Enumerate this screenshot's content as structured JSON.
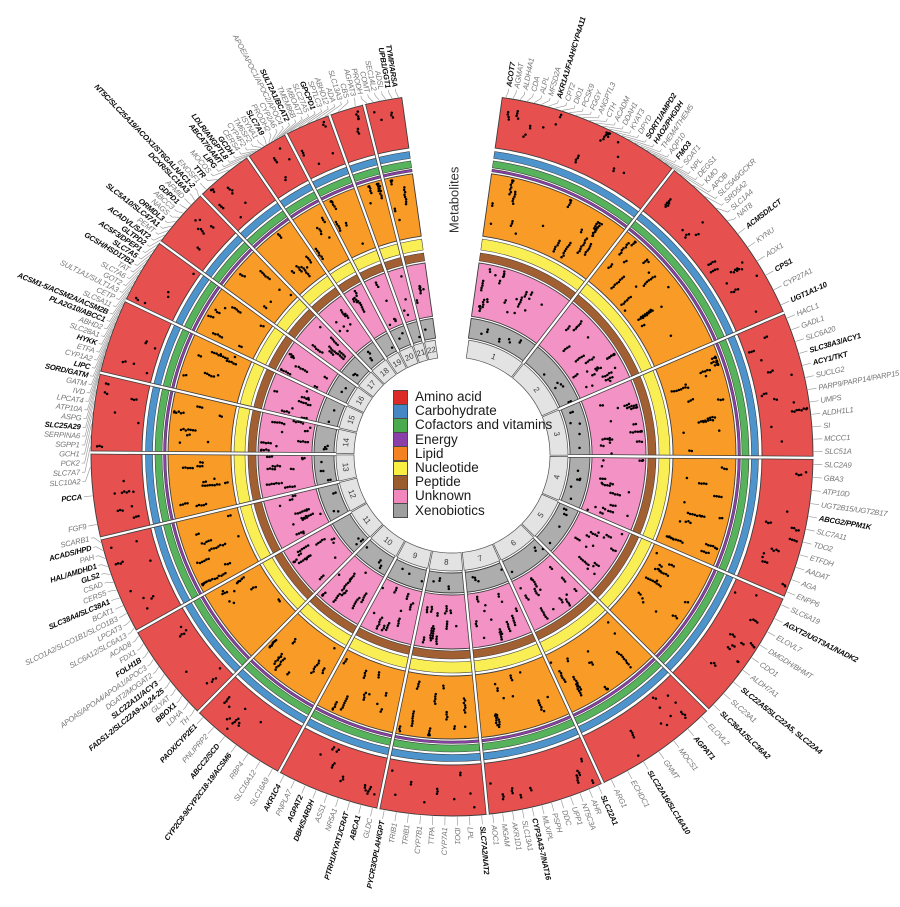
{
  "chart_data": {
    "type": "circular-manhattan-circos",
    "inner_axis_label": "Metabolites",
    "rotation": "clockwise",
    "start_angle_deg": -82,
    "gap_degrees": 16,
    "legend": [
      {
        "label": "Amino acid",
        "color": "#dc2a28"
      },
      {
        "label": "Carbohydrate",
        "color": "#4586c4"
      },
      {
        "label": "Cofactors and vitamins",
        "color": "#4aab4e"
      },
      {
        "label": "Energy",
        "color": "#8b3fa8"
      },
      {
        "label": "Lipid",
        "color": "#f58220"
      },
      {
        "label": "Nucleotide",
        "color": "#f9ee42"
      },
      {
        "label": "Peptide",
        "color": "#9a5b2d"
      },
      {
        "label": "Unknown",
        "color": "#f287be"
      },
      {
        "label": "Xenobiotics",
        "color": "#9e9e9e"
      }
    ],
    "rings": [
      {
        "name": "Amino acid",
        "color": "#e6504e",
        "r0": 310,
        "r1": 361,
        "dots": true,
        "density": 0.5,
        "stack": 4
      },
      {
        "name": "Carbohydrate",
        "color": "#4d94cc",
        "r0": 299.5,
        "r1": 306.5
      },
      {
        "name": "Cofactors and vitamins",
        "color": "#57b25c",
        "r0": 290,
        "r1": 297
      },
      {
        "name": "Energy",
        "color": "#8b3fa8",
        "r0": 286,
        "r1": 288.5
      },
      {
        "name": "Lipid",
        "color": "#f89b27",
        "r0": 221,
        "r1": 284,
        "dots": true,
        "density": 0.62,
        "stack": 8
      },
      {
        "name": "Nucleotide",
        "color": "#f9ef54",
        "r0": 207,
        "r1": 218
      },
      {
        "name": "Peptide",
        "color": "#a26032",
        "r0": 196,
        "r1": 204
      },
      {
        "name": "Unknown",
        "color": "#f393c5",
        "r0": 140,
        "r1": 194,
        "dots": true,
        "density": 0.68,
        "stack": 6
      },
      {
        "name": "Xenobiotics",
        "color": "#adadad",
        "r0": 118,
        "r1": 138,
        "dots": true,
        "density": 0.2,
        "stack": 2
      }
    ],
    "chromosome_ring": {
      "r0": 98,
      "r1": 116,
      "fill": "#e3e3e3"
    },
    "chromosomes": [
      {
        "name": "1",
        "size": 249,
        "labels": [
          {
            "t": "ACOT7",
            "b": true
          },
          {
            "t": "AGMAT"
          },
          {
            "t": "ALDH4A1"
          },
          {
            "t": "CDA"
          },
          {
            "t": "ALPL"
          },
          {
            "t": "MFSD2A"
          },
          {
            "t": "AKR1A1/FAAH/CYP4A11",
            "b": true
          },
          {
            "t": "CPT2"
          },
          {
            "t": "DIO1"
          },
          {
            "t": "PCSK9"
          },
          {
            "t": "FGGY"
          },
          {
            "t": "ANGPTL3"
          },
          {
            "t": "CTH"
          },
          {
            "t": "ACADM"
          },
          {
            "t": "DDAH1"
          },
          {
            "t": "KYAT3"
          },
          {
            "t": "DPYD"
          },
          {
            "t": "SORT1/AMPD2",
            "b": true
          },
          {
            "t": "HAO2/PHGDH",
            "b": true
          },
          {
            "t": "THEM4/THEM5"
          },
          {
            "t": "AQP10"
          },
          {
            "t": "FMO3",
            "b": true
          },
          {
            "t": "SOAT1"
          },
          {
            "t": "NPL"
          },
          {
            "t": "DEGS1"
          },
          {
            "t": "KMO"
          }
        ]
      },
      {
        "name": "2",
        "size": 243,
        "labels": [
          {
            "t": "APOB"
          },
          {
            "t": "SLC5A6/GCKR"
          },
          {
            "t": "SRD5A2"
          },
          {
            "t": "SLC1A4"
          },
          {
            "t": "NAT8"
          },
          {
            "t": "ACMSD/LCT",
            "b": true
          },
          {
            "t": "KYNU"
          },
          {
            "t": "AOX1"
          },
          {
            "t": "CPS1",
            "b": true
          },
          {
            "t": "CYP27A1"
          },
          {
            "t": "UGT1A1-10",
            "b": true
          }
        ]
      },
      {
        "name": "3",
        "size": 198,
        "labels": [
          {
            "t": "HACL1"
          },
          {
            "t": "GADL1"
          },
          {
            "t": "SLC6A20"
          },
          {
            "t": "SLC38A3/ACY1",
            "b": true
          },
          {
            "t": "ACY1/TKT",
            "b": true
          },
          {
            "t": "SUCLG2"
          },
          {
            "t": "PARP9/PARP14/PARP15"
          },
          {
            "t": "UMPS"
          },
          {
            "t": "ALDH1L1"
          },
          {
            "t": "SI"
          },
          {
            "t": "MCCC1"
          },
          {
            "t": "SLC51A"
          }
        ]
      },
      {
        "name": "4",
        "size": 191,
        "labels": [
          {
            "t": "SLC2A9"
          },
          {
            "t": "GBA3"
          },
          {
            "t": "ATP10D"
          },
          {
            "t": "UGT2B15/UGT2B17"
          },
          {
            "t": "ABCG2/PPM1K",
            "b": true
          },
          {
            "t": "SLC7A11"
          },
          {
            "t": "TDO2"
          },
          {
            "t": "ETFDH"
          },
          {
            "t": "AADAT"
          },
          {
            "t": "AGA"
          },
          {
            "t": "ENPP6"
          }
        ]
      },
      {
        "name": "5",
        "size": 181,
        "labels": [
          {
            "t": "SLC6A19"
          },
          {
            "t": "AGXT2/UGT3A1/NADK2",
            "b": true
          },
          {
            "t": "ELOVL7"
          },
          {
            "t": "DMGDH/BHMT"
          },
          {
            "t": "CDO1"
          },
          {
            "t": "ALDH7A1"
          },
          {
            "t": "SLC22A5/SLC22A5, SLC22A4",
            "b": true
          },
          {
            "t": "SLC23A1"
          },
          {
            "t": "SLC36A1/SLC36A2",
            "b": true
          }
        ]
      },
      {
        "name": "6",
        "size": 171,
        "labels": [
          {
            "t": "ELOVL2"
          },
          {
            "t": "AGPAT1",
            "b": true
          },
          {
            "t": "MOCS1"
          },
          {
            "t": "GNMT"
          },
          {
            "t": "SLC22A16/SLC16A10",
            "b": true
          },
          {
            "t": "ECHDC1"
          },
          {
            "t": "ARG1"
          }
        ]
      },
      {
        "name": "7",
        "size": 159,
        "labels": [
          {
            "t": "SLC22A1",
            "b": true
          },
          {
            "t": "AHR"
          },
          {
            "t": "NT5C3A"
          },
          {
            "t": "UPP1"
          },
          {
            "t": "DDC"
          },
          {
            "t": "PSPH"
          },
          {
            "t": "MLXIPL"
          },
          {
            "t": "CYP3A43-7/NAT16",
            "b": true
          },
          {
            "t": "SLC13A1"
          },
          {
            "t": "AKR1D1"
          },
          {
            "t": "MGAM"
          },
          {
            "t": "AOC1"
          }
        ]
      },
      {
        "name": "8",
        "size": 146,
        "labels": [
          {
            "t": "SLC7A2/NAT2",
            "b": true
          },
          {
            "t": "LPL"
          },
          {
            "t": "IDO1"
          },
          {
            "t": "CYP7A1"
          },
          {
            "t": "TTPA"
          },
          {
            "t": "CYP7B1"
          },
          {
            "t": "TRIB1"
          },
          {
            "t": "TRIB1"
          },
          {
            "t": "PYCR3/OPLAH/GPT",
            "b": true
          }
        ]
      },
      {
        "name": "9",
        "size": 141,
        "labels": [
          {
            "t": "GLDC"
          },
          {
            "t": "ABCA1",
            "b": true
          },
          {
            "t": "PTRH1/KYAT1/CRAT",
            "b": true
          },
          {
            "t": "NR5A1"
          },
          {
            "t": "ASS1"
          },
          {
            "t": "DBH/SARDH",
            "b": true
          },
          {
            "t": "AGPAT2",
            "b": true
          },
          {
            "t": "PNPLA7"
          },
          {
            "t": "AKR1C4",
            "b": true
          }
        ]
      },
      {
        "name": "10",
        "size": 134,
        "labels": [
          {
            "t": "SLC16A9"
          },
          {
            "t": "SLC16A12"
          },
          {
            "t": "RBP4"
          },
          {
            "t": "CYP2C8-9/CYP2C18-19/ACSM6",
            "b": true
          },
          {
            "t": "ABCC2/SCD",
            "b": true
          },
          {
            "t": "PNLIPRP2"
          },
          {
            "t": "PAOX/CYP2E1",
            "b": true
          }
        ]
      },
      {
        "name": "11",
        "size": 135,
        "labels": [
          {
            "t": "TH"
          },
          {
            "t": "LDHA"
          },
          {
            "t": "BBOX1",
            "b": true
          },
          {
            "t": "GLYAT"
          },
          {
            "t": "FADS1-2/SLC22A9-10,24-25",
            "b": true
          },
          {
            "t": "SLC22A11/ACY3",
            "b": true
          },
          {
            "t": "DGAT2/MOGAT2"
          },
          {
            "t": "APOA5/APOA4/APOA1/APOC3"
          },
          {
            "t": "FOLH1B",
            "b": true
          },
          {
            "t": "FDX1"
          },
          {
            "t": "ACAD8"
          }
        ]
      },
      {
        "name": "12",
        "size": 133,
        "labels": [
          {
            "t": "SLC6A12/SLC6A13"
          },
          {
            "t": "LPCAT3"
          },
          {
            "t": "SLCO1A2/SLCO1B1/SLCO1B3"
          },
          {
            "t": "BCAT1"
          },
          {
            "t": "SLC38A4/SLC38A1",
            "b": true
          },
          {
            "t": "CERS5"
          },
          {
            "t": "CSAD"
          },
          {
            "t": "GLS2",
            "b": true
          },
          {
            "t": "HAL/AMDHD1",
            "b": true
          },
          {
            "t": "PAH"
          },
          {
            "t": "ACADS/HPD",
            "b": true
          },
          {
            "t": "SCARB1"
          }
        ]
      },
      {
        "name": "13",
        "size": 115,
        "labels": [
          {
            "t": "FGF9"
          },
          {
            "t": "PCCA",
            "b": true
          },
          {
            "t": "SLC10A2"
          }
        ]
      },
      {
        "name": "14",
        "size": 107,
        "labels": [
          {
            "t": "SLC7A7"
          },
          {
            "t": "PCK2"
          },
          {
            "t": "GCH1"
          },
          {
            "t": "SGPP1"
          },
          {
            "t": "SERPINA6"
          },
          {
            "t": "SLC25A29",
            "b": true
          },
          {
            "t": "ASPG"
          }
        ]
      },
      {
        "name": "15",
        "size": 102,
        "labels": [
          {
            "t": "ATP10A"
          },
          {
            "t": "LPCAT4"
          },
          {
            "t": "IVD"
          },
          {
            "t": "GATM"
          },
          {
            "t": "SORD/GATM",
            "b": true
          },
          {
            "t": "LIPC",
            "b": true
          },
          {
            "t": "CYP1A2"
          },
          {
            "t": "ETFA"
          },
          {
            "t": "HYKK",
            "b": true
          },
          {
            "t": "SLC28A1"
          },
          {
            "t": "ABHD2"
          }
        ]
      },
      {
        "name": "16",
        "size": 90,
        "labels": [
          {
            "t": "PLA2G10/ABCC1",
            "b": true
          },
          {
            "t": "ACSM1-5/ACSM2A/ACSM2B",
            "b": true
          },
          {
            "t": "SLC5A11"
          },
          {
            "t": "CETP"
          },
          {
            "t": "SULT1A1/SULT1A3"
          },
          {
            "t": "GOT2"
          },
          {
            "t": "SLC7A6"
          },
          {
            "t": "TAT"
          },
          {
            "t": "GCSH/HSD17B2",
            "b": true
          },
          {
            "t": "SLC7A5",
            "b": true
          },
          {
            "t": "ACSF3/DPEP1",
            "b": true
          }
        ]
      },
      {
        "name": "17",
        "size": 83,
        "labels": [
          {
            "t": "GLTPD2",
            "b": true
          },
          {
            "t": "ACADVL/SAT2",
            "b": true
          },
          {
            "t": "PEMT"
          },
          {
            "t": "SLC5A10/SLC47A1",
            "b": true
          },
          {
            "t": "ORMDL3",
            "b": true
          },
          {
            "t": "NAGS"
          },
          {
            "t": "ABCC3"
          },
          {
            "t": "GDPD1",
            "b": true
          },
          {
            "t": "AFMID"
          },
          {
            "t": "DCXR/SLC16A3",
            "b": true
          },
          {
            "t": "NT5C/SLC25A19/ACOX1/ST6GALNAC1-2",
            "b": true
          }
        ]
      },
      {
        "name": "18",
        "size": 80,
        "labels": [
          {
            "t": "ENOSF1"
          },
          {
            "t": "TTR",
            "b": true
          },
          {
            "t": "MOCOS"
          },
          {
            "t": "LIPG",
            "b": true
          }
        ]
      },
      {
        "name": "19",
        "size": 59,
        "labels": [
          {
            "t": "ABCA7/GAMT",
            "b": true
          },
          {
            "t": "LDLR/ANGPTL8",
            "b": true
          },
          {
            "t": "GCDH",
            "b": true
          },
          {
            "t": "CERS4"
          },
          {
            "t": "CYP4F2"
          },
          {
            "t": "TM6SF2"
          },
          {
            "t": "ISYNA1"
          },
          {
            "t": "SLC7A9",
            "b": true
          },
          {
            "t": "PRODH2"
          },
          {
            "t": "CYP2A6"
          },
          {
            "t": "APOE/APOC1/APOC2/APOC4"
          },
          {
            "t": "SULT2A1/BCAT2",
            "b": true
          },
          {
            "t": "TMEM86B"
          },
          {
            "t": "MBOAT7"
          },
          {
            "t": "SLC27A5"
          }
        ]
      },
      {
        "name": "20",
        "size": 63,
        "labels": [
          {
            "t": "GPCPD1",
            "b": true
          },
          {
            "t": "SPTLC3"
          },
          {
            "t": "ABHD12"
          },
          {
            "t": "ADA"
          },
          {
            "t": "SLC13A3"
          }
        ]
      },
      {
        "name": "21",
        "size": 48,
        "labels": [
          {
            "t": "CBS"
          },
          {
            "t": "AGPAT3"
          }
        ]
      },
      {
        "name": "22",
        "size": 51,
        "labels": [
          {
            "t": "PRODH"
          },
          {
            "t": "COMT"
          },
          {
            "t": "SEC14L2"
          },
          {
            "t": "ADSL"
          },
          {
            "t": "UPB1/GGT1",
            "b": true
          },
          {
            "t": "TYMP/ARSA",
            "b": true
          }
        ]
      }
    ]
  }
}
